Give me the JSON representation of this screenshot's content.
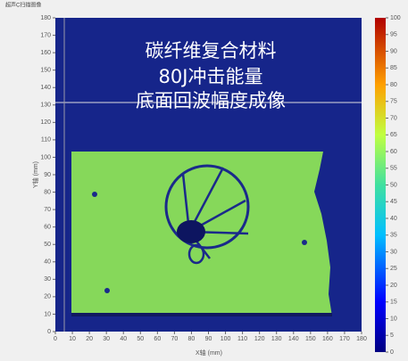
{
  "window_title": "超声C扫描图像",
  "chart_data": {
    "type": "heatmap",
    "overlay_lines": [
      "碳纤维复合材料",
      "80J冲击能量",
      "底面回波幅度成像"
    ],
    "xlabel": "X轴 (mm)",
    "ylabel": "Y轴 (mm)",
    "xlim": [
      0,
      180
    ],
    "xticks": [
      0,
      10,
      20,
      30,
      40,
      50,
      60,
      70,
      80,
      90,
      100,
      110,
      120,
      130,
      140,
      150,
      160,
      170,
      180
    ],
    "ylim": [
      0,
      180
    ],
    "yticks": [
      0,
      10,
      20,
      30,
      40,
      50,
      60,
      70,
      80,
      90,
      100,
      110,
      120,
      130,
      140,
      150,
      160,
      170,
      180
    ],
    "colorbar": {
      "lim": [
        0,
        100
      ],
      "ticks": [
        0,
        5,
        10,
        15,
        20,
        25,
        30,
        35,
        40,
        45,
        50,
        55,
        60,
        65,
        70,
        75,
        80,
        85,
        90,
        95,
        100
      ]
    }
  }
}
